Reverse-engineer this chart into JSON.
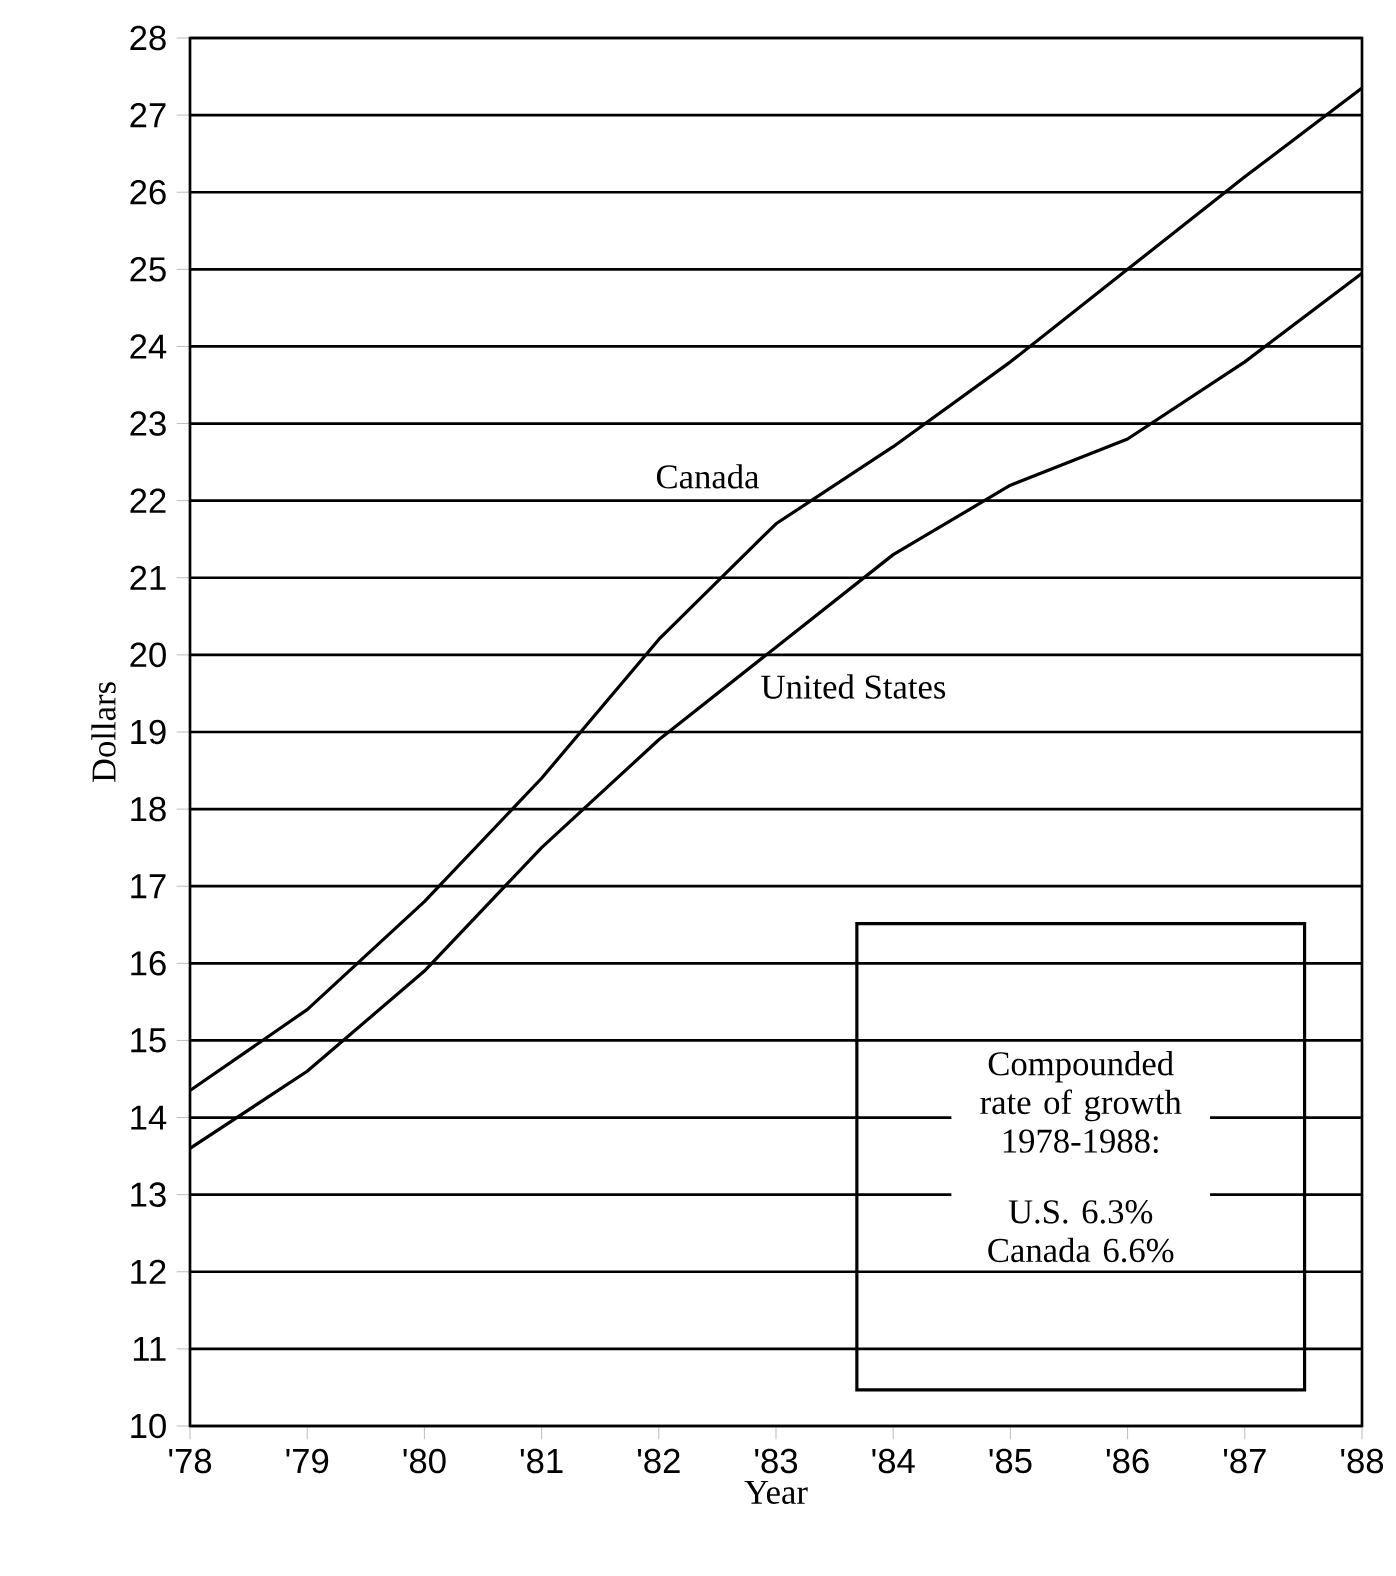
{
  "chart_data": {
    "type": "line",
    "xlabel": "Year",
    "ylabel": "Dollars",
    "categories": [
      "'78",
      "'79",
      "'80",
      "'81",
      "'82",
      "'83",
      "'84",
      "'85",
      "'86",
      "'87",
      "'88"
    ],
    "series": [
      {
        "name": "Canada",
        "color": "#000000",
        "values": [
          14.35,
          15.4,
          16.8,
          18.4,
          20.2,
          21.7,
          22.7,
          23.8,
          25.0,
          26.2,
          27.35
        ]
      },
      {
        "name": "United States",
        "color": "#000000",
        "values": [
          13.6,
          14.6,
          15.9,
          17.5,
          18.9,
          20.1,
          21.3,
          22.2,
          22.8,
          23.8,
          24.95
        ]
      }
    ],
    "ylim": [
      10,
      28
    ],
    "yticks": [
      10,
      11,
      12,
      13,
      14,
      15,
      16,
      17,
      18,
      19,
      20,
      21,
      22,
      23,
      24,
      25,
      26,
      27,
      28
    ],
    "grid": "y",
    "legend": false,
    "marker": "none",
    "line_style": "solid",
    "annotations": [
      "Compounded rate of growth 1978-1988:",
      "U.S. 6.3% Canada 6.6%"
    ]
  }
}
